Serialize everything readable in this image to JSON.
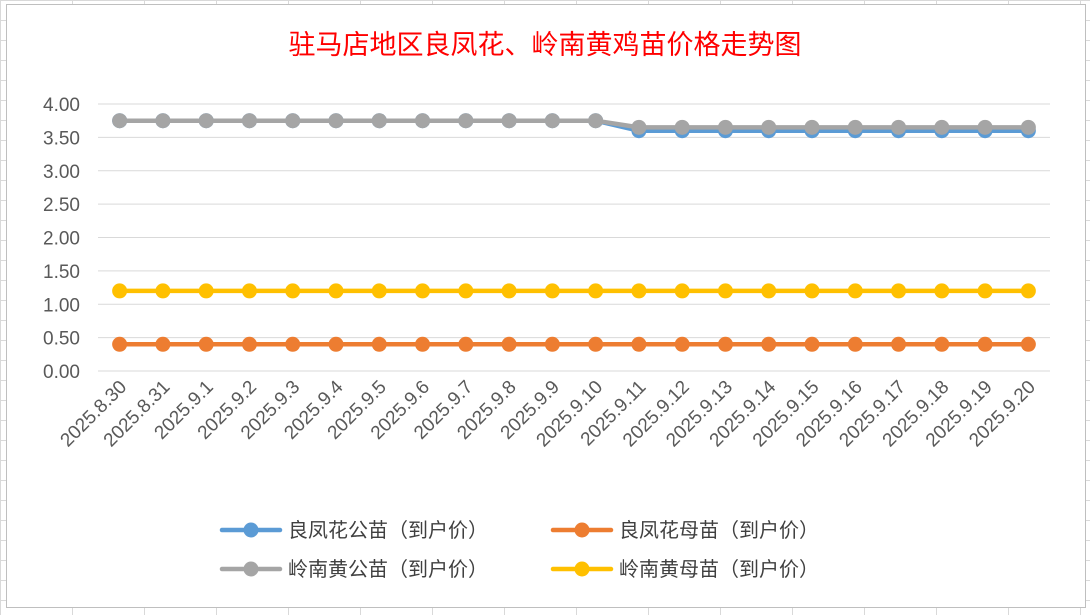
{
  "chart_data": {
    "type": "line",
    "title": "驻马店地区良凤花、岭南黄鸡苗价格走势图",
    "categories": [
      "2025.8.30",
      "2025.8.31",
      "2025.9.1",
      "2025.9.2",
      "2025.9.3",
      "2025.9.4",
      "2025.9.5",
      "2025.9.6",
      "2025.9.7",
      "2025.9.8",
      "2025.9.9",
      "2025.9.10",
      "2025.9.11",
      "2025.9.12",
      "2025.9.13",
      "2025.9.14",
      "2025.9.15",
      "2025.9.16",
      "2025.9.17",
      "2025.9.18",
      "2025.9.19",
      "2025.9.20"
    ],
    "y_ticks": [
      "0.00",
      "0.50",
      "1.00",
      "1.50",
      "2.00",
      "2.50",
      "3.00",
      "3.50",
      "4.00"
    ],
    "ylim": [
      0,
      4
    ],
    "grid": true,
    "legend_position": "bottom",
    "series": [
      {
        "name": "良凤花公苗（到户价）",
        "color": "#5b9bd5",
        "values": [
          3.75,
          3.75,
          3.75,
          3.75,
          3.75,
          3.75,
          3.75,
          3.75,
          3.75,
          3.75,
          3.75,
          3.75,
          3.6,
          3.6,
          3.6,
          3.6,
          3.6,
          3.6,
          3.6,
          3.6,
          3.6,
          3.6
        ]
      },
      {
        "name": "良凤花母苗（到户价）",
        "color": "#ed7d31",
        "values": [
          0.4,
          0.4,
          0.4,
          0.4,
          0.4,
          0.4,
          0.4,
          0.4,
          0.4,
          0.4,
          0.4,
          0.4,
          0.4,
          0.4,
          0.4,
          0.4,
          0.4,
          0.4,
          0.4,
          0.4,
          0.4,
          0.4
        ]
      },
      {
        "name": "岭南黄公苗（到户价）",
        "color": "#a5a5a5",
        "values": [
          3.75,
          3.75,
          3.75,
          3.75,
          3.75,
          3.75,
          3.75,
          3.75,
          3.75,
          3.75,
          3.75,
          3.75,
          3.65,
          3.65,
          3.65,
          3.65,
          3.65,
          3.65,
          3.65,
          3.65,
          3.65,
          3.65
        ]
      },
      {
        "name": "岭南黄母苗（到户价）",
        "color": "#ffc000",
        "values": [
          1.2,
          1.2,
          1.2,
          1.2,
          1.2,
          1.2,
          1.2,
          1.2,
          1.2,
          1.2,
          1.2,
          1.2,
          1.2,
          1.2,
          1.2,
          1.2,
          1.2,
          1.2,
          1.2,
          1.2,
          1.2,
          1.2
        ]
      }
    ]
  }
}
